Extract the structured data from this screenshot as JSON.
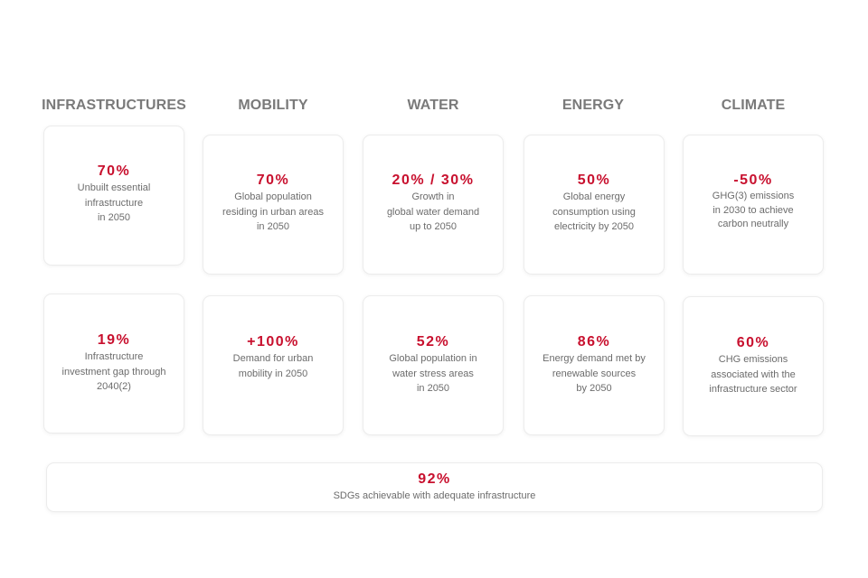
{
  "columns": [
    {
      "title": "INFRASTRUCTURES",
      "cards": [
        {
          "value": "70%",
          "desc": "Unbuilt essential\ninfrastructure\nin 2050"
        },
        {
          "value": "19%",
          "desc": "Infrastructure\ninvestment gap through\n2040(2)"
        }
      ]
    },
    {
      "title": "MOBILITY",
      "cards": [
        {
          "value": "70%",
          "desc": "Global population\nresiding in urban areas\nin 2050"
        },
        {
          "value": "+100%",
          "desc": "Demand for urban\nmobility in 2050"
        }
      ]
    },
    {
      "title": "WATER",
      "cards": [
        {
          "value": "20% / 30%",
          "desc": "Growth in\nglobal water demand\nup to 2050"
        },
        {
          "value": "52%",
          "desc": "Global population in\nwater stress areas\nin 2050"
        }
      ]
    },
    {
      "title": "ENERGY",
      "cards": [
        {
          "value": "50%",
          "desc": "Global energy\nconsumption using\nelectricity by 2050"
        },
        {
          "value": "86%",
          "desc": "Energy demand met by\nrenewable sources\nby 2050"
        }
      ]
    },
    {
      "title": "CLIMATE",
      "cards": [
        {
          "value": "-50%",
          "desc": "GHG(3) emissions\nin 2030 to achieve\ncarbon neutrally"
        },
        {
          "value": "60%",
          "desc": "CHG emissions\nassociated with the\ninfrastructure sector"
        }
      ]
    }
  ],
  "footer_card": {
    "value": "92%",
    "desc": "SDGs achievable with adequate infrastructure"
  },
  "colors": {
    "accent": "#c8102e",
    "heading": "#7a7a7a",
    "text": "#6c6c6c",
    "card_border": "#ececec"
  }
}
